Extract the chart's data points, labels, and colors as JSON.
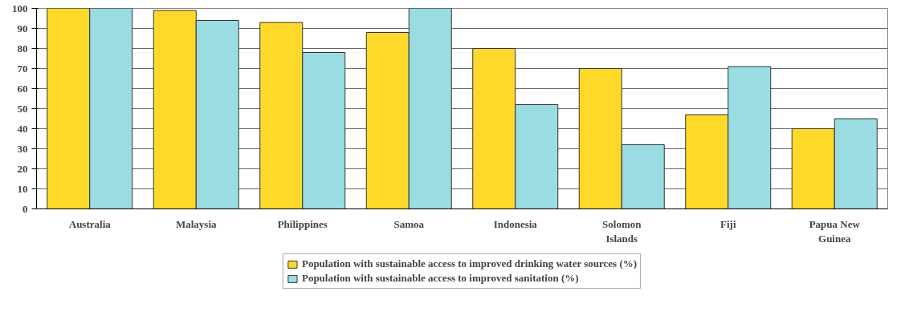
{
  "chart_data": {
    "type": "bar",
    "categories": [
      "Australia",
      "Malaysia",
      "Philippines",
      "Samoa",
      "Indonesia",
      "Solomon Islands",
      "Fiji",
      "Papua New Guinea"
    ],
    "series": [
      {
        "name": "Population with sustainable access to improved drinking water sources (%)",
        "color": "#ffd92a",
        "values": [
          100,
          99,
          93,
          88,
          80,
          70,
          47,
          40
        ]
      },
      {
        "name": "Population with sustainable access to improved sanitation (%)",
        "color": "#99dde3",
        "values": [
          100,
          94,
          78,
          100,
          52,
          32,
          71,
          45
        ]
      }
    ],
    "ylim": [
      0,
      100
    ],
    "yticks": [
      0,
      10,
      20,
      30,
      40,
      50,
      60,
      70,
      80,
      90,
      100
    ],
    "grid": "y",
    "legend": "bottom"
  }
}
